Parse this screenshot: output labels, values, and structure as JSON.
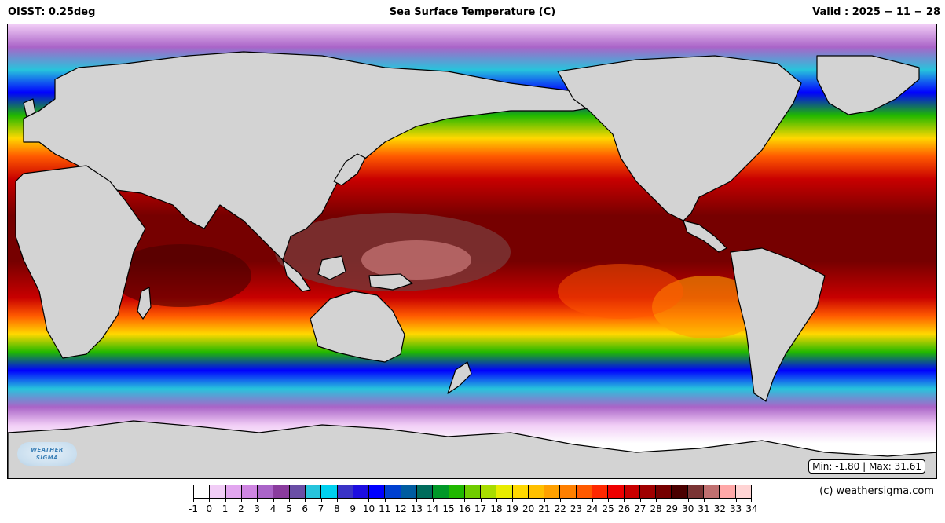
{
  "header": {
    "left_label": "OISST",
    "left_value": "0.25deg",
    "title": "Sea Surface Temperature (C)",
    "right_label": "Valid",
    "right_value": "2025 − 11 − 28"
  },
  "stats": {
    "text": "Min: -1.80 | Max: 31.61"
  },
  "logo": {
    "line1": "WEATHER",
    "line2": "SIGMA"
  },
  "credit": "(c) weathersigma.com",
  "colorbar": {
    "ticks": [
      "-1",
      "0",
      "1",
      "2",
      "3",
      "4",
      "5",
      "6",
      "7",
      "8",
      "9",
      "10",
      "11",
      "12",
      "13",
      "14",
      "15",
      "16",
      "17",
      "18",
      "19",
      "20",
      "21",
      "22",
      "23",
      "24",
      "25",
      "26",
      "27",
      "28",
      "29",
      "30",
      "31",
      "32",
      "33",
      "34"
    ],
    "colors": [
      "#ffffff",
      "#f1cdf6",
      "#e2a6ef",
      "#cf86e2",
      "#aa64c8",
      "#8a3c9e",
      "#6a4ea6",
      "#27c4dc",
      "#00d0ef",
      "#3a33c6",
      "#1d0ee0",
      "#0000ff",
      "#0040d0",
      "#005ca0",
      "#006c5c",
      "#009828",
      "#20b800",
      "#70cc00",
      "#a8dc00",
      "#e8ec00",
      "#ffd800",
      "#ffc000",
      "#ffa000",
      "#ff8000",
      "#ff5a00",
      "#ff2800",
      "#ee0000",
      "#c80000",
      "#a00000",
      "#760000",
      "#4a0000",
      "#7a3434",
      "#c07070",
      "#ffa8a8",
      "#ffd4d4",
      "#ffffff"
    ],
    "colors_note": ""
  }
}
